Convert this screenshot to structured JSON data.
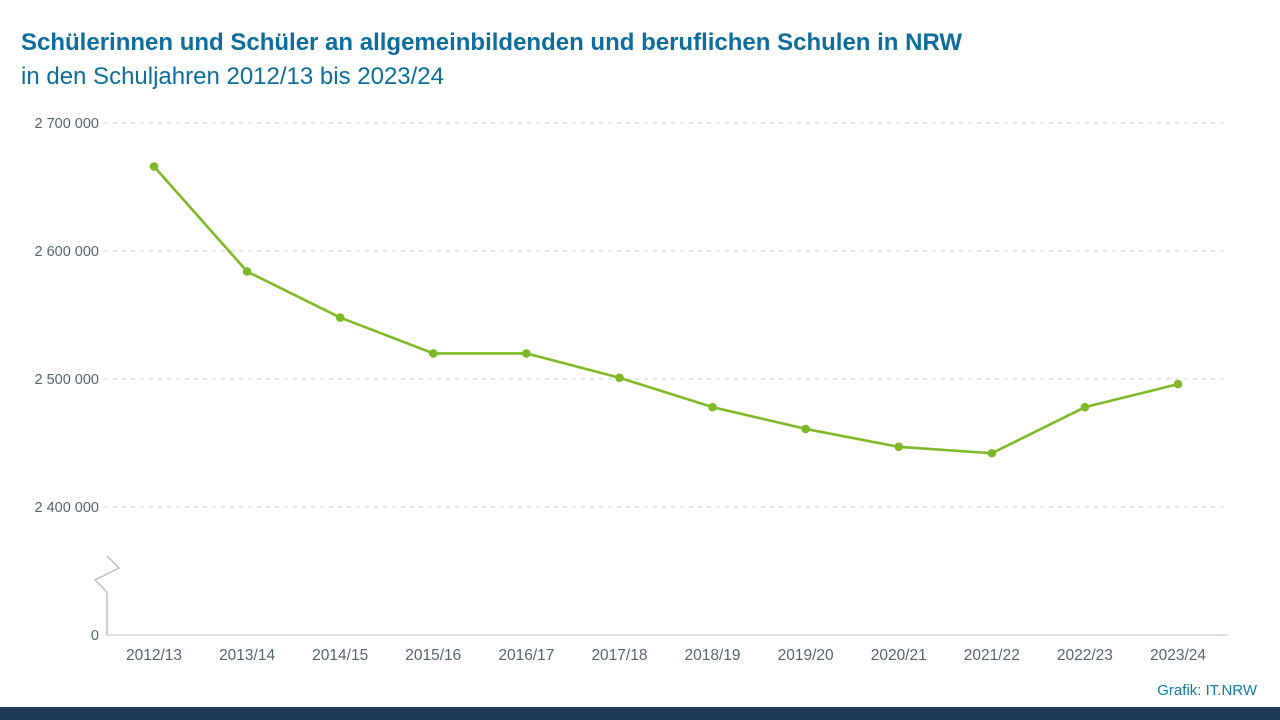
{
  "title": {
    "line1": "Schülerinnen und Schüler an allgemeinbildenden und beruflichen Schulen in NRW",
    "line2": "in den Schuljahren 2012/13 bis 2023/24"
  },
  "footer": {
    "credit": "Grafik: IT.NRW"
  },
  "colors": {
    "background": "#ffffff",
    "title": "#0d6d9c",
    "credit": "#0f7ba8",
    "axis_text": "#54656f",
    "grid": "#c9ced4",
    "axis_line": "#b9c2c9",
    "line": "#7fb928",
    "bottom_bar": "#1d3b58"
  },
  "chart_data": {
    "type": "line",
    "title": "Schülerinnen und Schüler an allgemeinbildenden und beruflichen Schulen in NRW in den Schuljahren 2012/13 bis 2023/24",
    "xlabel": "",
    "ylabel": "",
    "categories": [
      "2012/13",
      "2013/14",
      "2014/15",
      "2015/16",
      "2016/17",
      "2017/18",
      "2018/19",
      "2019/20",
      "2020/21",
      "2021/22",
      "2022/23",
      "2023/24"
    ],
    "series": [
      {
        "name": "Schülerinnen und Schüler",
        "values": [
          2666000,
          2584000,
          2548000,
          2520000,
          2520000,
          2501000,
          2478000,
          2461000,
          2447000,
          2442000,
          2478000,
          2496000
        ]
      }
    ],
    "yticks": [
      2700000,
      2600000,
      2500000,
      2400000
    ],
    "ytick_labels": [
      "2 700 000",
      "2 600 000",
      "2 500 000",
      "2 400 000"
    ],
    "zero_tick_label": "0",
    "axis_break": true,
    "ylim": [
      2400000,
      2700000
    ],
    "grid": "horizontal-dashed",
    "legend": "none",
    "marker": "circle"
  }
}
